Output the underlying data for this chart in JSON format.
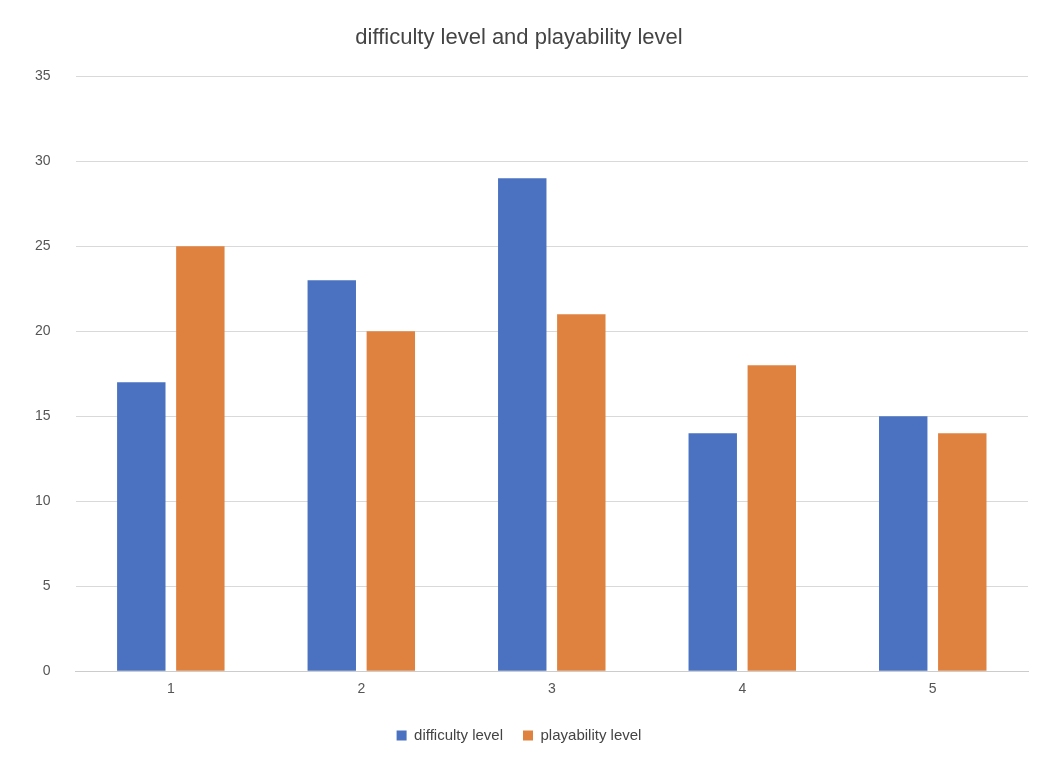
{
  "chart_data": {
    "type": "bar",
    "title": "difficulty level and playability level",
    "categories": [
      "1",
      "2",
      "3",
      "4",
      "5"
    ],
    "series": [
      {
        "name": "difficulty level",
        "color": "#4a72c0",
        "values": [
          17,
          23,
          29,
          14,
          15
        ]
      },
      {
        "name": "playability level",
        "color": "#e0823f",
        "values": [
          25,
          20,
          21,
          18,
          14
        ]
      }
    ],
    "ylim": [
      0,
      35
    ],
    "yticks": [
      0,
      5,
      10,
      15,
      20,
      25,
      30,
      35
    ],
    "grid": "y",
    "legend": "bottom"
  }
}
